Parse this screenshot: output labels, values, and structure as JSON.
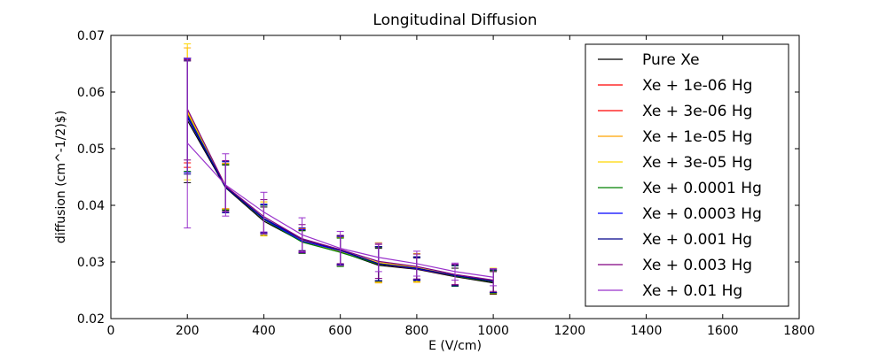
{
  "chart_data": {
    "type": "line",
    "title": "Longitudinal Diffusion",
    "xlabel": "E (V/cm)",
    "ylabel": "diffusion (cm^-1/2)$)",
    "xlim": [
      0,
      1800
    ],
    "ylim": [
      0.02,
      0.07
    ],
    "xticks": [
      "0",
      "200",
      "400",
      "600",
      "800",
      "1000",
      "1200",
      "1400",
      "1600",
      "1800"
    ],
    "yticks": [
      "0.02",
      "0.03",
      "0.04",
      "0.05",
      "0.06",
      "0.07"
    ],
    "grid": false,
    "legend_position": "upper-right",
    "x": [
      200,
      300,
      400,
      500,
      600,
      700,
      800,
      900,
      1000
    ],
    "series": [
      {
        "name": "Pure Xe",
        "color": "#000000",
        "values": [
          0.055,
          0.0431,
          0.0372,
          0.0336,
          0.0318,
          0.0294,
          0.0287,
          0.0274,
          0.0263
        ],
        "errors": [
          0.011,
          0.004,
          0.0025,
          0.002,
          0.0025,
          0.003,
          0.002,
          0.0015,
          0.002
        ]
      },
      {
        "name": "Xe + 1e-06 Hg",
        "color": "#ff0000",
        "values": [
          0.0562,
          0.0433,
          0.0375,
          0.0338,
          0.032,
          0.0296,
          0.0288,
          0.0275,
          0.0265
        ],
        "errors": [
          0.0095,
          0.004,
          0.0025,
          0.002,
          0.0025,
          0.003,
          0.002,
          0.0018,
          0.002
        ]
      },
      {
        "name": "Xe + 3e-06 Hg",
        "color": "#ff0000",
        "values": [
          0.0565,
          0.0434,
          0.0376,
          0.0339,
          0.032,
          0.0297,
          0.0289,
          0.0276,
          0.0266
        ],
        "errors": [
          0.009,
          0.004,
          0.0025,
          0.002,
          0.0025,
          0.003,
          0.002,
          0.0018,
          0.002
        ]
      },
      {
        "name": "Xe + 1e-05 Hg",
        "color": "#ffa500",
        "values": [
          0.0568,
          0.0434,
          0.0376,
          0.0338,
          0.0319,
          0.0298,
          0.0289,
          0.0276,
          0.0266
        ],
        "errors": [
          0.011,
          0.004,
          0.003,
          0.002,
          0.0025,
          0.0035,
          0.0025,
          0.0018,
          0.0022
        ]
      },
      {
        "name": "Xe + 3e-05 Hg",
        "color": "#ffd700",
        "values": [
          0.0565,
          0.0433,
          0.0376,
          0.0337,
          0.0319,
          0.0299,
          0.029,
          0.0276,
          0.0267
        ],
        "errors": [
          0.012,
          0.004,
          0.003,
          0.002,
          0.0025,
          0.0035,
          0.0025,
          0.0018,
          0.0022
        ]
      },
      {
        "name": "Xe + 0.0001 Hg",
        "color": "#008000",
        "values": [
          0.056,
          0.0432,
          0.0375,
          0.0335,
          0.0317,
          0.0296,
          0.0289,
          0.0275,
          0.0265
        ],
        "errors": [
          0.01,
          0.004,
          0.0025,
          0.002,
          0.0025,
          0.003,
          0.002,
          0.0018,
          0.002
        ]
      },
      {
        "name": "Xe + 0.0003 Hg",
        "color": "#0000ff",
        "values": [
          0.0558,
          0.0432,
          0.0376,
          0.0337,
          0.032,
          0.0297,
          0.0288,
          0.0276,
          0.0266
        ],
        "errors": [
          0.01,
          0.0045,
          0.0025,
          0.002,
          0.0025,
          0.003,
          0.002,
          0.0018,
          0.002
        ]
      },
      {
        "name": "Xe + 0.001 Hg",
        "color": "#00008b",
        "values": [
          0.0555,
          0.0432,
          0.0377,
          0.034,
          0.0321,
          0.0297,
          0.0289,
          0.0276,
          0.0266
        ],
        "errors": [
          0.01,
          0.0045,
          0.0025,
          0.002,
          0.0025,
          0.003,
          0.002,
          0.0018,
          0.002
        ]
      },
      {
        "name": "Xe + 0.003 Hg",
        "color": "#800080",
        "values": [
          0.057,
          0.0434,
          0.038,
          0.0341,
          0.0322,
          0.0301,
          0.0292,
          0.0278,
          0.0268
        ],
        "errors": [
          0.009,
          0.0045,
          0.003,
          0.0025,
          0.0025,
          0.003,
          0.0022,
          0.0018,
          0.002
        ]
      },
      {
        "name": "Xe + 0.01 Hg",
        "color": "#9932cc",
        "values": [
          0.051,
          0.0436,
          0.0388,
          0.0348,
          0.0324,
          0.0308,
          0.0297,
          0.0283,
          0.0273
        ],
        "errors": [
          0.015,
          0.0055,
          0.0035,
          0.003,
          0.003,
          0.0025,
          0.0022,
          0.0015,
          0.0015
        ]
      }
    ]
  }
}
